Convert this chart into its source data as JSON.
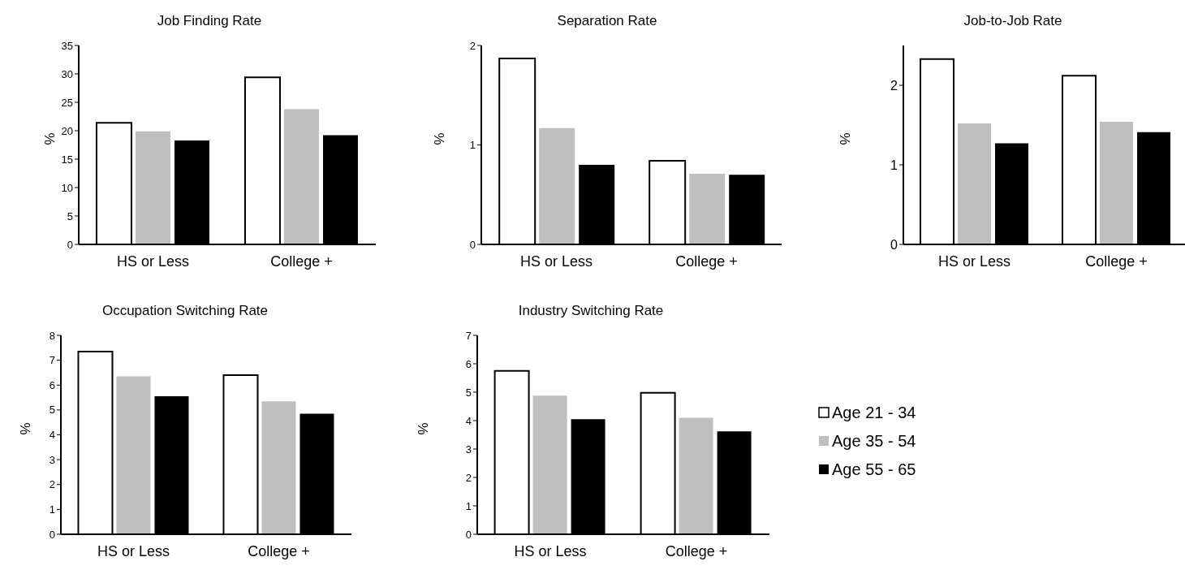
{
  "chart_data": [
    {
      "type": "bar",
      "title": "Job Finding Rate",
      "ylabel": "%",
      "categories": [
        "HS or Less",
        "College +"
      ],
      "ylim": [
        0,
        35
      ],
      "yticks": [
        0,
        5,
        10,
        15,
        20,
        25,
        30,
        35
      ],
      "series": [
        {
          "color": "#ffffff",
          "values": [
            21.4,
            29.4
          ]
        },
        {
          "color": "#bfbfbf",
          "values": [
            19.9,
            23.8
          ]
        },
        {
          "color": "#000000",
          "values": [
            18.3,
            19.2
          ]
        }
      ]
    },
    {
      "type": "bar",
      "title": "Separation Rate",
      "ylabel": "%",
      "categories": [
        "HS or Less",
        "College +"
      ],
      "ylim": [
        0,
        2
      ],
      "yticks": [
        0,
        1,
        2
      ],
      "series": [
        {
          "color": "#ffffff",
          "values": [
            1.87,
            0.84
          ]
        },
        {
          "color": "#bfbfbf",
          "values": [
            1.17,
            0.71
          ]
        },
        {
          "color": "#000000",
          "values": [
            0.8,
            0.7
          ]
        }
      ]
    },
    {
      "type": "bar",
      "title": "Job-to-Job Rate",
      "ylabel": "%",
      "categories": [
        "HS or Less",
        "College +"
      ],
      "ylim": [
        0,
        2.5
      ],
      "yticks": [
        0,
        1,
        2
      ],
      "series": [
        {
          "color": "#ffffff",
          "values": [
            2.33,
            2.12
          ]
        },
        {
          "color": "#bfbfbf",
          "values": [
            1.52,
            1.54
          ]
        },
        {
          "color": "#000000",
          "values": [
            1.27,
            1.41
          ]
        }
      ]
    },
    {
      "type": "bar",
      "title": "Occupation Switching Rate",
      "ylabel": "%",
      "categories": [
        "HS or Less",
        "College +"
      ],
      "ylim": [
        0,
        8
      ],
      "yticks": [
        0,
        1,
        2,
        3,
        4,
        5,
        6,
        7,
        8
      ],
      "series": [
        {
          "color": "#ffffff",
          "values": [
            7.35,
            6.4
          ]
        },
        {
          "color": "#bfbfbf",
          "values": [
            6.35,
            5.35
          ]
        },
        {
          "color": "#000000",
          "values": [
            5.55,
            4.85
          ]
        }
      ]
    },
    {
      "type": "bar",
      "title": "Industry Switching Rate",
      "ylabel": "%",
      "categories": [
        "HS or Less",
        "College +"
      ],
      "ylim": [
        0,
        7
      ],
      "yticks": [
        0,
        1,
        2,
        3,
        4,
        5,
        6,
        7
      ],
      "legend": "right",
      "series": [
        {
          "name": "Age 21 - 34",
          "color": "#ffffff",
          "values": [
            5.75,
            4.98
          ]
        },
        {
          "name": "Age 35 - 54",
          "color": "#bfbfbf",
          "values": [
            4.88,
            4.1
          ]
        },
        {
          "name": "Age 55 - 65",
          "color": "#000000",
          "values": [
            4.05,
            3.62
          ]
        }
      ]
    }
  ]
}
